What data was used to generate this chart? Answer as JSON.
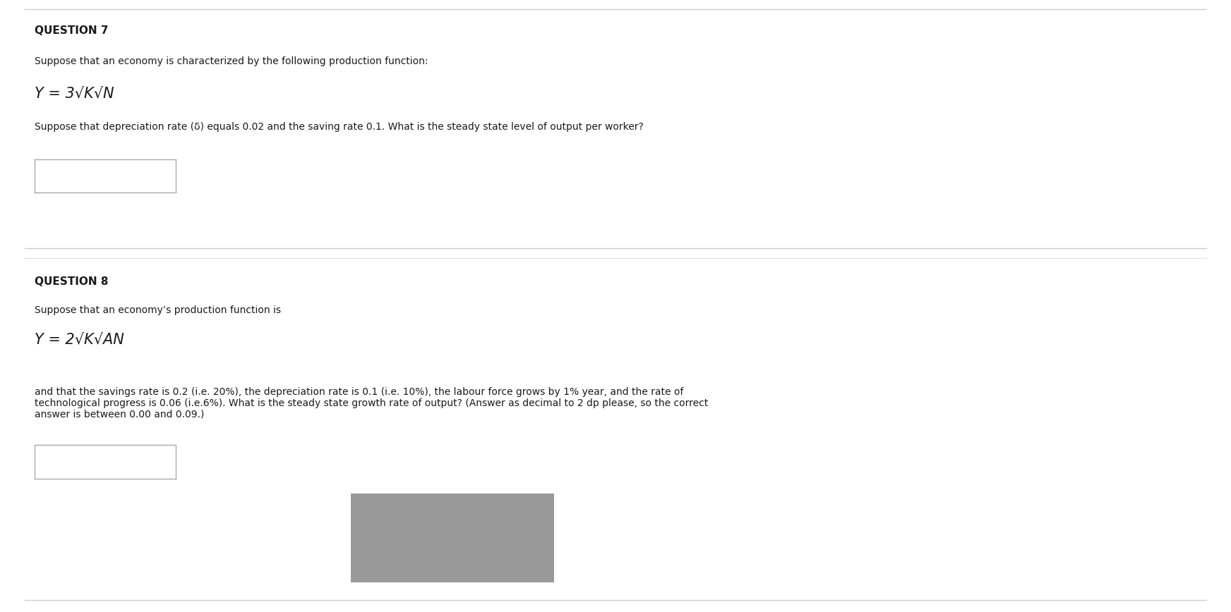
{
  "bg_color": "#ffffff",
  "line_color": "#cccccc",
  "q7_header": "QUESTION 7",
  "q7_text1": "Suppose that an economy is characterized by the following production function:",
  "q7_formula": "Y = 3√K√N",
  "q7_text2": "Suppose that depreciation rate (δ) equals 0.02 and the saving rate 0.1. What is the steady state level of output per worker?",
  "q8_header": "QUESTION 8",
  "q8_text1": "Suppose that an economy’s production function is",
  "q8_formula": "Y = 2√K√AN",
  "q8_text2": "and that the savings rate is 0.2 (i.e. 20%), the depreciation rate is 0.1 (i.e. 10%), the labour force grows by 1% year, and the rate of\ntechnological progress is 0.06 (i.e.6%). What is the steady state growth rate of output? (Answer as decimal to 2 dp please, so the correct\nanswer is between 0.00 and 0.09.)",
  "input_box_color": "#ffffff",
  "input_box_border": "#aaaaaa",
  "gray_box_color": "#999999",
  "font_color": "#1a1a1a",
  "header_fontsize": 11,
  "body_fontsize": 10,
  "formula_fontsize": 15
}
